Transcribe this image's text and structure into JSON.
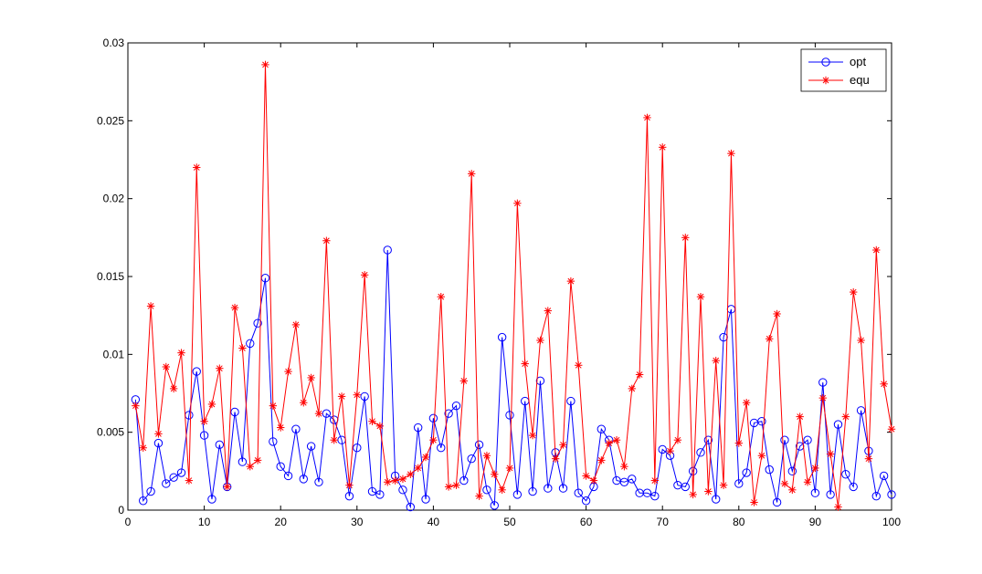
{
  "chart_data": {
    "type": "line",
    "title": "",
    "xlabel": "",
    "ylabel": "",
    "xlim": [
      0,
      100
    ],
    "ylim": [
      0,
      0.03
    ],
    "xticks": [
      0,
      10,
      20,
      30,
      40,
      50,
      60,
      70,
      80,
      90,
      100
    ],
    "xtick_labels": [
      "0",
      "10",
      "20",
      "30",
      "40",
      "50",
      "60",
      "70",
      "80",
      "90",
      "100"
    ],
    "yticks": [
      0,
      0.005,
      0.01,
      0.015,
      0.02,
      0.025,
      0.03
    ],
    "ytick_labels": [
      "0",
      "0.005",
      "0.01",
      "0.015",
      "0.02",
      "0.025",
      "0.03"
    ],
    "grid": false,
    "legend_position": "top-right",
    "series": [
      {
        "name": "opt",
        "color": "#0000ff",
        "marker": "circle",
        "x": [
          1,
          2,
          3,
          4,
          5,
          6,
          7,
          8,
          9,
          10,
          11,
          12,
          13,
          14,
          15,
          16,
          17,
          18,
          19,
          20,
          21,
          22,
          23,
          24,
          25,
          26,
          27,
          28,
          29,
          30,
          31,
          32,
          33,
          34,
          35,
          36,
          37,
          38,
          39,
          40,
          41,
          42,
          43,
          44,
          45,
          46,
          47,
          48,
          49,
          50,
          51,
          52,
          53,
          54,
          55,
          56,
          57,
          58,
          59,
          60,
          61,
          62,
          63,
          64,
          65,
          66,
          67,
          68,
          69,
          70,
          71,
          72,
          73,
          74,
          75,
          76,
          77,
          78,
          79,
          80,
          81,
          82,
          83,
          84,
          85,
          86,
          87,
          88,
          89,
          90,
          91,
          92,
          93,
          94,
          95,
          96,
          97,
          98,
          99,
          100
        ],
        "values": [
          0.0071,
          0.0006,
          0.0012,
          0.0043,
          0.0017,
          0.0021,
          0.0024,
          0.0061,
          0.0089,
          0.0048,
          0.0007,
          0.0042,
          0.0015,
          0.0063,
          0.0031,
          0.0107,
          0.012,
          0.0149,
          0.0044,
          0.0028,
          0.0022,
          0.0052,
          0.002,
          0.0041,
          0.0018,
          0.0062,
          0.0058,
          0.0045,
          0.0009,
          0.004,
          0.0073,
          0.0012,
          0.001,
          0.0167,
          0.0022,
          0.0013,
          0.0002,
          0.0053,
          0.0007,
          0.0059,
          0.004,
          0.0062,
          0.0067,
          0.0019,
          0.0033,
          0.0042,
          0.0013,
          0.0003,
          0.0111,
          0.0061,
          0.001,
          0.007,
          0.0012,
          0.0083,
          0.0014,
          0.0037,
          0.0014,
          0.007,
          0.0011,
          0.0006,
          0.0015,
          0.0052,
          0.0045,
          0.0019,
          0.0018,
          0.002,
          0.0011,
          0.0011,
          0.0009,
          0.0039,
          0.0035,
          0.0016,
          0.0015,
          0.0025,
          0.0037,
          0.0045,
          0.0007,
          0.0111,
          0.0129,
          0.0017,
          0.0024,
          0.0056,
          0.0057,
          0.0026,
          0.0005,
          0.0045,
          0.0025,
          0.0041,
          0.0045,
          0.0011,
          0.0082,
          0.001,
          0.0055,
          0.0023,
          0.0015,
          0.0064,
          0.0038,
          0.0009,
          0.0022,
          0.001
        ]
      },
      {
        "name": "equ",
        "color": "#ff0000",
        "marker": "asterisk",
        "x": [
          1,
          2,
          3,
          4,
          5,
          6,
          7,
          8,
          9,
          10,
          11,
          12,
          13,
          14,
          15,
          16,
          17,
          18,
          19,
          20,
          21,
          22,
          23,
          24,
          25,
          26,
          27,
          28,
          29,
          30,
          31,
          32,
          33,
          34,
          35,
          36,
          37,
          38,
          39,
          40,
          41,
          42,
          43,
          44,
          45,
          46,
          47,
          48,
          49,
          50,
          51,
          52,
          53,
          54,
          55,
          56,
          57,
          58,
          59,
          60,
          61,
          62,
          63,
          64,
          65,
          66,
          67,
          68,
          69,
          70,
          71,
          72,
          73,
          74,
          75,
          76,
          77,
          78,
          79,
          80,
          81,
          82,
          83,
          84,
          85,
          86,
          87,
          88,
          89,
          90,
          91,
          92,
          93,
          94,
          95,
          96,
          97,
          98,
          99,
          100
        ],
        "values": [
          0.0067,
          0.004,
          0.0131,
          0.0049,
          0.0092,
          0.0078,
          0.0101,
          0.0019,
          0.022,
          0.0057,
          0.0068,
          0.0091,
          0.0015,
          0.013,
          0.0104,
          0.0028,
          0.0032,
          0.0286,
          0.0067,
          0.0053,
          0.0089,
          0.0119,
          0.0069,
          0.0085,
          0.0062,
          0.0173,
          0.0045,
          0.0073,
          0.0016,
          0.0074,
          0.0151,
          0.0057,
          0.0054,
          0.0018,
          0.0019,
          0.002,
          0.0023,
          0.0027,
          0.0034,
          0.0045,
          0.0137,
          0.0015,
          0.0016,
          0.0083,
          0.0216,
          0.0009,
          0.0035,
          0.0023,
          0.0013,
          0.0027,
          0.0197,
          0.0094,
          0.0048,
          0.0109,
          0.0128,
          0.0033,
          0.0042,
          0.0147,
          0.0093,
          0.0022,
          0.0019,
          0.0032,
          0.0043,
          0.0045,
          0.0028,
          0.0078,
          0.0087,
          0.0252,
          0.0019,
          0.0233,
          0.0038,
          0.0045,
          0.0175,
          0.001,
          0.0137,
          0.0012,
          0.0096,
          0.0016,
          0.0229,
          0.0043,
          0.0069,
          0.0005,
          0.0035,
          0.011,
          0.0126,
          0.0017,
          0.0013,
          0.006,
          0.0018,
          0.0027,
          0.0072,
          0.0036,
          0.0002,
          0.006,
          0.014,
          0.0109,
          0.0033,
          0.0167,
          0.0081,
          0.0052
        ]
      }
    ]
  }
}
